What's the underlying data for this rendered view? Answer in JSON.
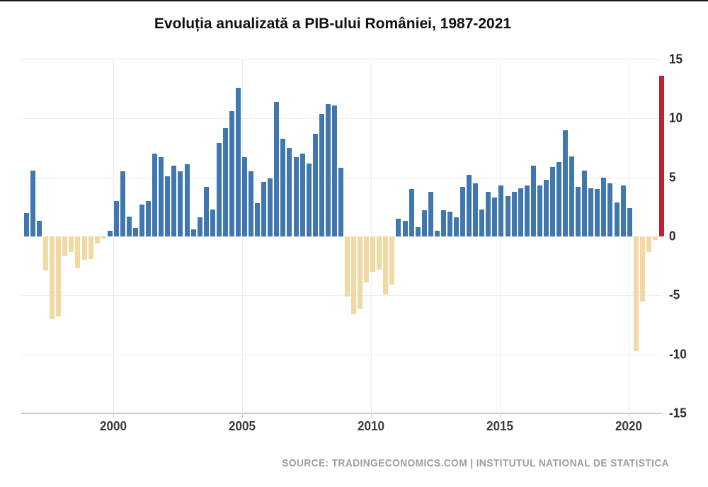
{
  "page": {
    "title": "Evoluția anualizată a PIB-ului României, 1987-2021",
    "source": "SOURCE: TRADINGECONOMICS.COM | INSTITUTUL NATIONAL DE STATISTICA"
  },
  "chart_data": {
    "type": "bar",
    "title": "Evoluția anualizată a PIB-ului României, 1987-2021",
    "subtitle": "",
    "xlabel": "",
    "ylabel": "",
    "frequency": "quarterly",
    "x_tick_labels": [
      "2000",
      "2005",
      "2010",
      "2015",
      "2020"
    ],
    "y_tick_labels": [
      "15",
      "10",
      "5",
      "0",
      "-5",
      "-10",
      "-15"
    ],
    "y_tick_values": [
      15,
      10,
      5,
      0,
      -5,
      -10,
      -15
    ],
    "ylim": [
      -15,
      15
    ],
    "grid": true,
    "legend": null,
    "values": [
      2.0,
      5.6,
      1.3,
      -2.9,
      -7.0,
      -6.8,
      -1.7,
      -1.3,
      -2.7,
      -2.0,
      -1.9,
      -0.6,
      -0.2,
      0.5,
      3.0,
      5.5,
      1.7,
      0.7,
      2.7,
      3.0,
      7.0,
      6.7,
      5.1,
      6.0,
      5.5,
      6.1,
      0.6,
      1.6,
      4.2,
      2.3,
      7.9,
      9.2,
      10.6,
      12.6,
      6.7,
      5.5,
      2.8,
      4.6,
      4.9,
      11.4,
      8.3,
      7.5,
      6.7,
      7.0,
      6.2,
      8.7,
      10.4,
      11.2,
      11.1,
      5.8,
      -5.1,
      -6.6,
      -6.1,
      -3.9,
      -3.0,
      -2.8,
      -4.9,
      -4.1,
      1.5,
      1.3,
      4.0,
      0.8,
      2.2,
      3.8,
      0.5,
      2.2,
      2.1,
      1.6,
      4.2,
      5.2,
      4.5,
      2.3,
      3.8,
      3.3,
      4.3,
      3.4,
      3.8,
      4.1,
      4.3,
      6.0,
      4.3,
      4.8,
      5.9,
      6.3,
      9.0,
      6.8,
      4.2,
      5.6,
      4.1,
      4.0,
      5.0,
      4.5,
      2.9,
      4.3,
      2.4,
      -9.7,
      -5.5,
      -1.3,
      -0.3,
      13.6
    ],
    "highlight_last_bar": true,
    "colors": {
      "positive_bar": "#3f77ae",
      "negative_bar": "#f2d8a2",
      "highlight_bar": "#bb2433",
      "gridline": "#ededed",
      "axis_line": "#c9c9c9",
      "x_label_text": "#3a3a3a",
      "y_label_text": "#2b2b2b",
      "title_text": "#111111",
      "source_text": "#9e9e9e"
    }
  }
}
